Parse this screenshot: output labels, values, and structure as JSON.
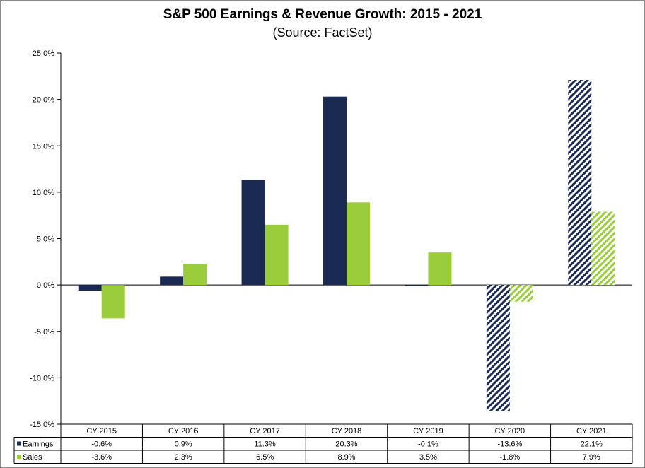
{
  "chart_data": {
    "type": "bar",
    "title": "S&P 500 Earnings & Revenue Growth:  2015 - 2021",
    "subtitle": "(Source: FactSet)",
    "categories": [
      "CY 2015",
      "CY 2016",
      "CY 2017",
      "CY 2018",
      "CY 2019",
      "CY 2020",
      "CY 2021"
    ],
    "series": [
      {
        "name": "Earnings",
        "values": [
          -0.6,
          0.9,
          11.3,
          20.3,
          -0.1,
          -13.6,
          22.1
        ],
        "labels": [
          "-0.6%",
          "0.9%",
          "11.3%",
          "20.3%",
          "-0.1%",
          "-13.6%",
          "22.1%"
        ],
        "color": "#1b2a52",
        "estimate_from_index": 5
      },
      {
        "name": "Sales",
        "values": [
          -3.6,
          2.3,
          6.5,
          8.9,
          3.5,
          -1.8,
          7.9
        ],
        "labels": [
          "-3.6%",
          "2.3%",
          "6.5%",
          "8.9%",
          "3.5%",
          "-1.8%",
          "7.9%"
        ],
        "color": "#9acd3c",
        "estimate_from_index": 5
      }
    ],
    "ylim": [
      -15,
      25
    ],
    "yticks": [
      25,
      20,
      15,
      10,
      5,
      0,
      -5,
      -10,
      -15
    ],
    "ytick_labels": [
      "25.0%",
      "20.0%",
      "15.0%",
      "10.0%",
      "5.0%",
      "0.0%",
      "-5.0%",
      "-10.0%",
      "-15.0%"
    ],
    "xlabel": "",
    "ylabel": "",
    "grid": false,
    "legend": "data-table-left"
  }
}
